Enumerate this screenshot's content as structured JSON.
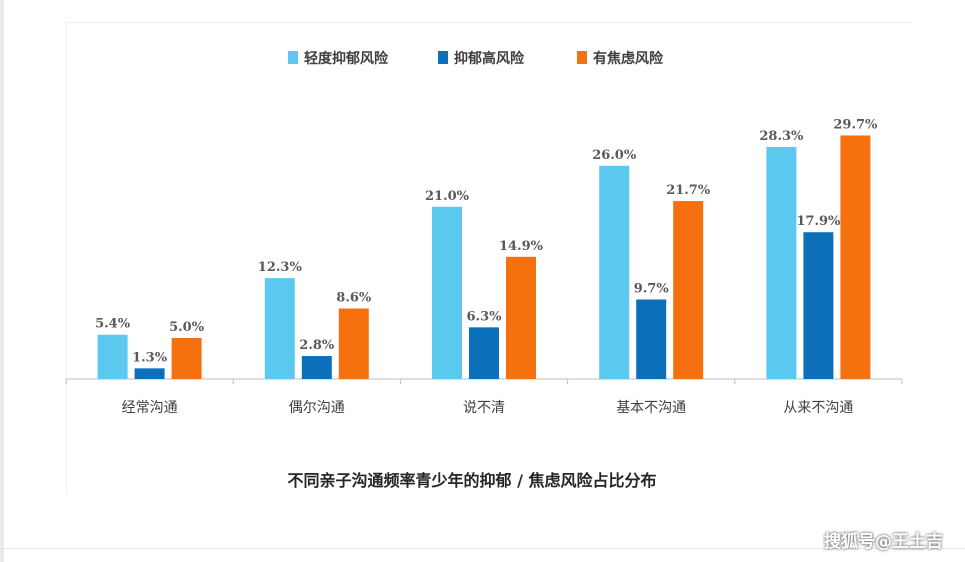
{
  "chart_data": {
    "type": "bar",
    "title": "不同亲子沟通频率青少年的抑郁 / 焦虑风险占比分布",
    "categories": [
      "经常沟通",
      "偶尔沟通",
      "说不清",
      "基本不沟通",
      "从来不沟通"
    ],
    "series": [
      {
        "name": "轻度抑郁风险",
        "color": "#5bc8ef",
        "values": [
          5.4,
          12.3,
          21.0,
          26.0,
          28.3
        ],
        "labels": [
          "5.4%",
          "12.3%",
          "21.0%",
          "26.0%",
          "28.3%"
        ]
      },
      {
        "name": "抑郁高风险",
        "color": "#0c6fba",
        "values": [
          1.3,
          2.8,
          6.3,
          9.7,
          17.9
        ],
        "labels": [
          "1.3%",
          "2.8%",
          "6.3%",
          "9.7%",
          "17.9%"
        ]
      },
      {
        "name": "有焦虑风险",
        "color": "#f5700f",
        "values": [
          5.0,
          8.6,
          14.9,
          21.7,
          29.7
        ],
        "labels": [
          "5.0%",
          "8.6%",
          "14.9%",
          "21.7%",
          "29.7%"
        ]
      }
    ],
    "ylim": [
      0,
      30
    ],
    "legend_position": "top-center",
    "grid": false,
    "xlabel": "",
    "ylabel": ""
  },
  "watermark": "搜狐号@王土吉"
}
